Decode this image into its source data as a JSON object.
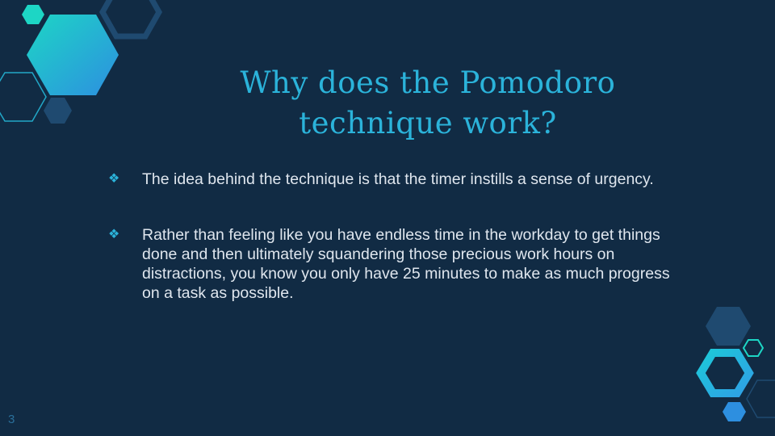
{
  "slide": {
    "title": "Why does the Pomodoro technique work?",
    "bullets": [
      {
        "icon": "diamond-cluster-icon",
        "text": "The idea behind the technique is that the timer instills a sense of urgency."
      },
      {
        "icon": "diamond-cluster-icon",
        "text": "Rather than feeling like you have endless time in the workday to get things done and then ultimately squandering those precious work hours on distractions, you know you only have 25 minutes to make as much progress on a task as possible."
      }
    ],
    "page_number": "3",
    "bullet_glyph": "❖"
  },
  "colors": {
    "background": "#112b44",
    "accent": "#2bb3da",
    "text": "#dfe6ee",
    "teal": "#1dd6c5",
    "blue": "#2d8fe0",
    "navy_hex": "#1f4a70"
  }
}
